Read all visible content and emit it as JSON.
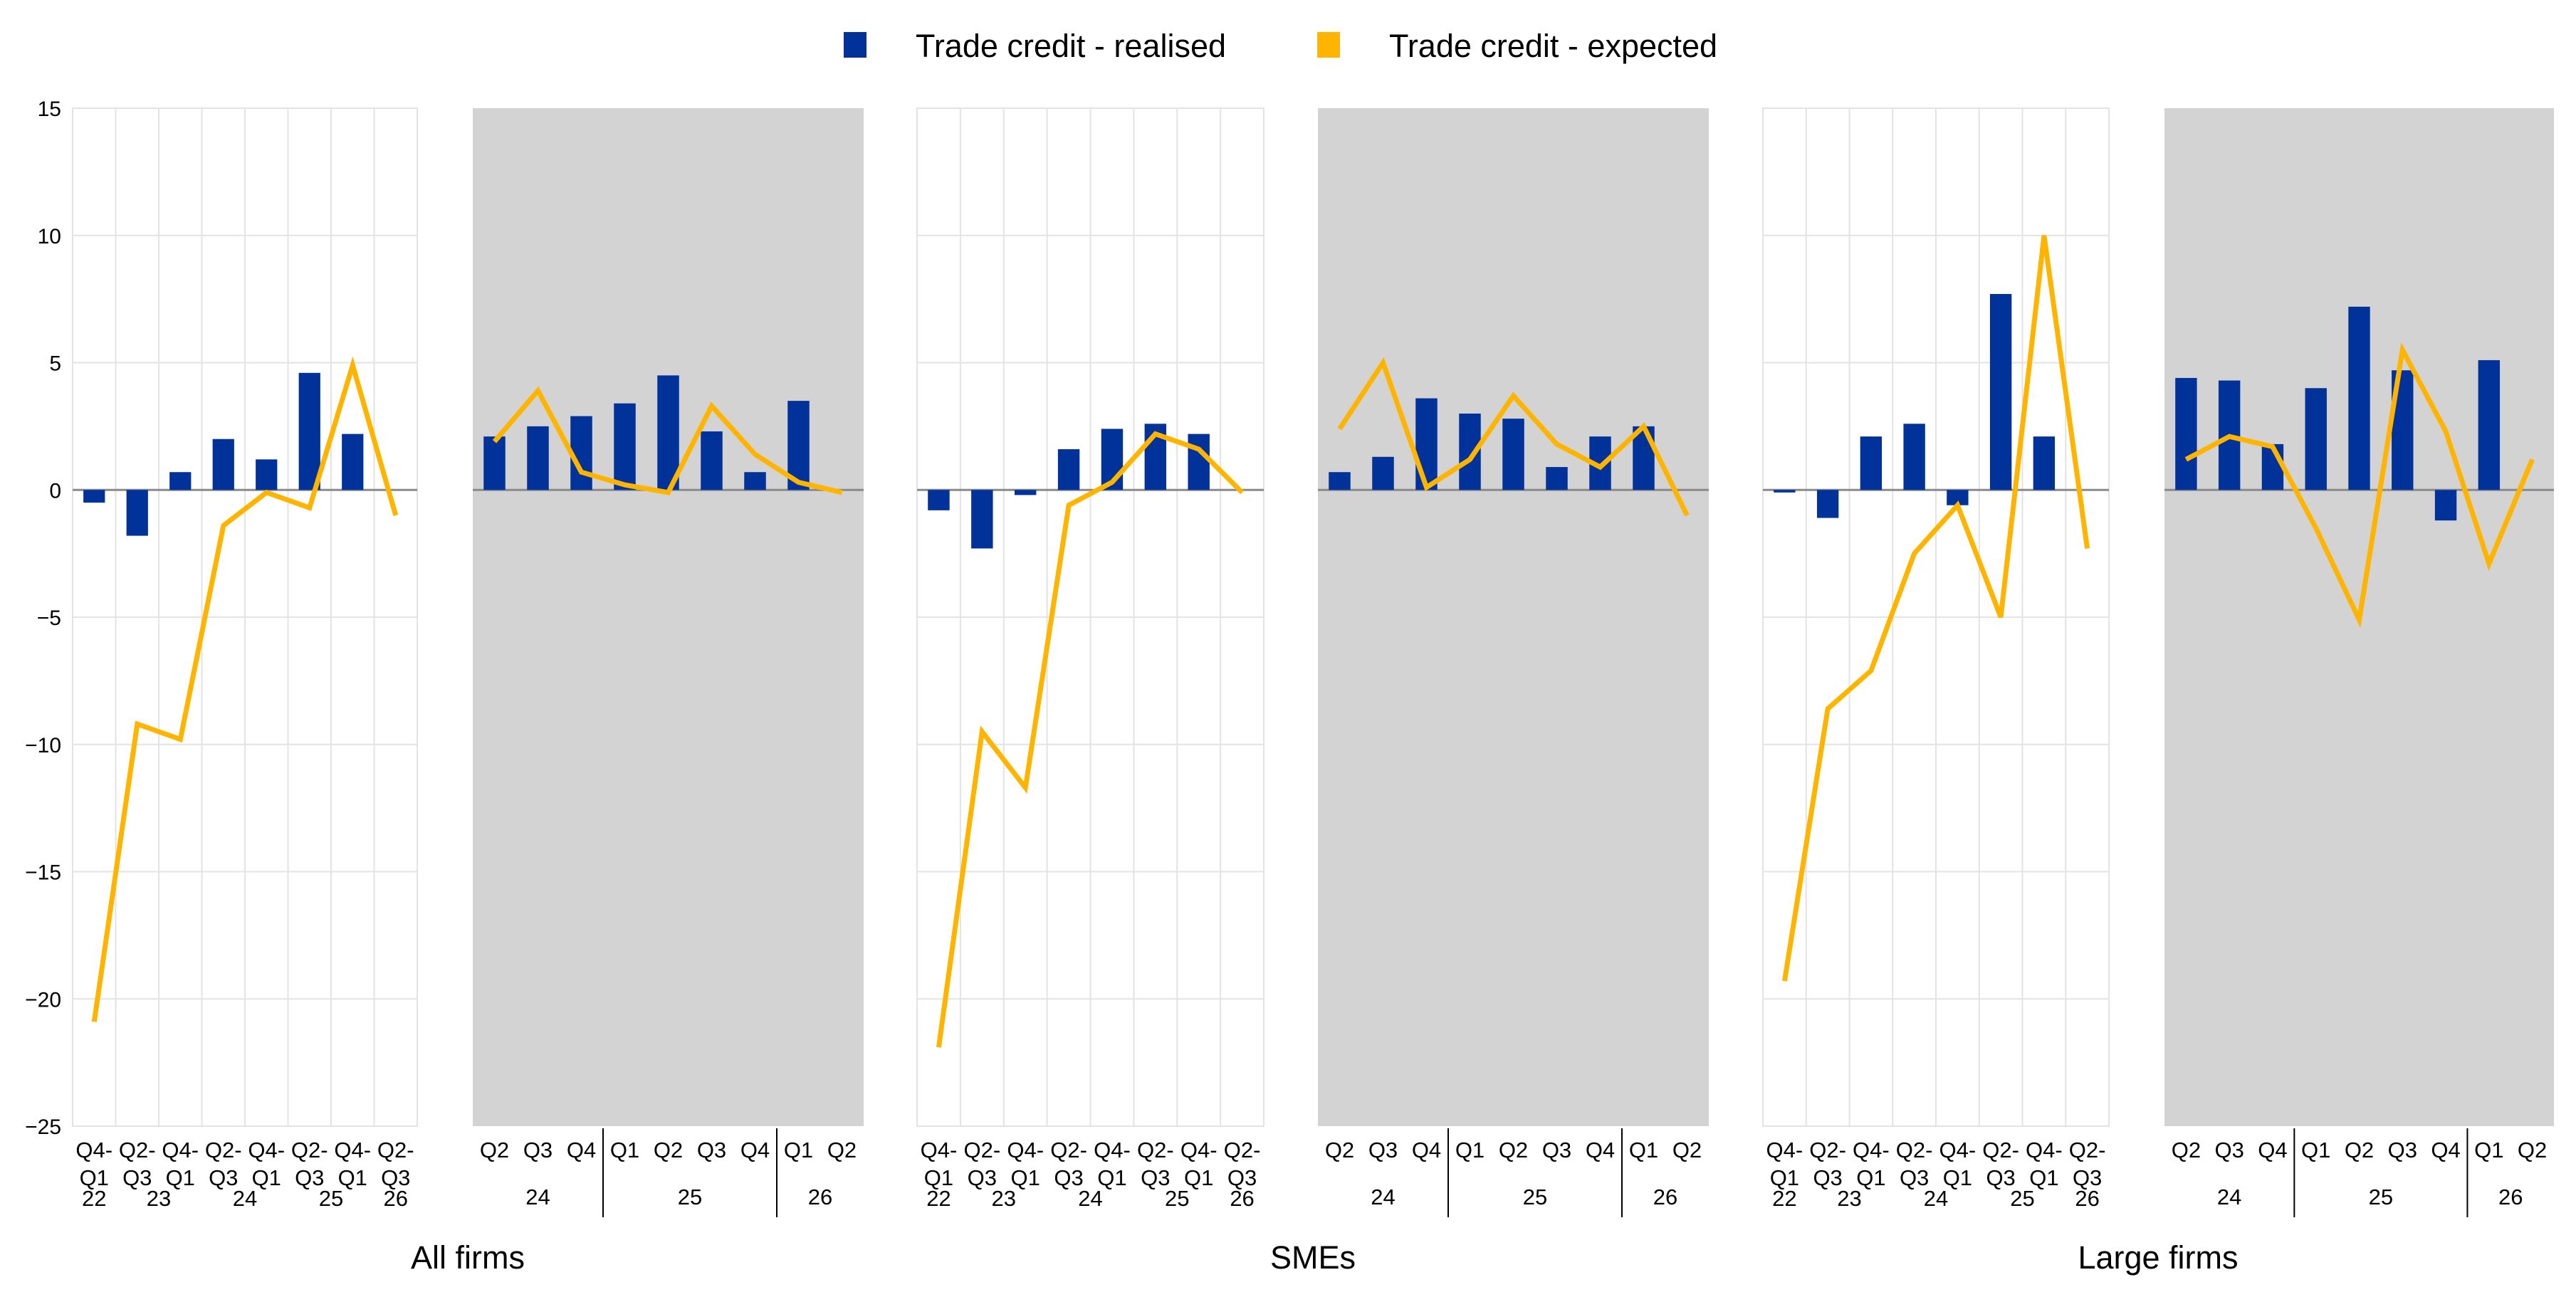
{
  "chart_data": {
    "type": "bar+line",
    "y_range": [
      -25,
      15
    ],
    "y_ticks": [
      "15",
      "10",
      "5",
      "0",
      "−5",
      "−10",
      "−15",
      "−20",
      "−25"
    ],
    "legend": [
      {
        "label": "Trade credit - realised",
        "color": "#003299"
      },
      {
        "label": "Trade credit - expected",
        "color": "#ffb400"
      }
    ],
    "colors": {
      "realised": "#003299",
      "expected": "#ffb400",
      "shade": "#d3d3d3",
      "grid": "#e3e3e3",
      "zero": "#8a8a8a"
    },
    "groups": [
      {
        "title": "All firms",
        "history": {
          "quarters": [
            "Q4-Q1",
            "Q2-Q3",
            "Q4-Q1",
            "Q2-Q3",
            "Q4-Q1",
            "Q2-Q3",
            "Q4-Q1",
            "Q2-Q3"
          ],
          "years": [
            {
              "label": "22",
              "start": 0,
              "end": 0
            },
            {
              "label": "23",
              "start": 1,
              "end": 2
            },
            {
              "label": "24",
              "start": 3,
              "end": 4
            },
            {
              "label": "25",
              "start": 5,
              "end": 6
            },
            {
              "label": "26",
              "start": 7,
              "end": 7
            }
          ],
          "realised": [
            -0.5,
            -1.8,
            0.7,
            2.0,
            1.2,
            4.6,
            2.2,
            null
          ],
          "expected": [
            -20.9,
            -9.2,
            -9.8,
            -1.4,
            -0.1,
            -0.7,
            4.9,
            -1.0
          ]
        },
        "recent": {
          "quarters": [
            "Q2",
            "Q3",
            "Q4",
            "Q1",
            "Q2",
            "Q3",
            "Q4",
            "Q1",
            "Q2"
          ],
          "years": [
            {
              "label": "24",
              "start": 0,
              "end": 2
            },
            {
              "label": "25",
              "start": 3,
              "end": 6
            },
            {
              "label": "26",
              "start": 7,
              "end": 8
            }
          ],
          "realised": [
            2.1,
            2.5,
            2.9,
            3.4,
            4.5,
            2.3,
            0.7,
            3.5,
            null
          ],
          "expected": [
            1.9,
            3.9,
            0.7,
            0.2,
            -0.1,
            3.3,
            1.4,
            0.3,
            -0.1
          ]
        }
      },
      {
        "title": "SMEs",
        "history": {
          "quarters": [
            "Q4-Q1",
            "Q2-Q3",
            "Q4-Q1",
            "Q2-Q3",
            "Q4-Q1",
            "Q2-Q3",
            "Q4-Q1",
            "Q2-Q3"
          ],
          "years": [
            {
              "label": "22",
              "start": 0,
              "end": 0
            },
            {
              "label": "23",
              "start": 1,
              "end": 2
            },
            {
              "label": "24",
              "start": 3,
              "end": 4
            },
            {
              "label": "25",
              "start": 5,
              "end": 6
            },
            {
              "label": "26",
              "start": 7,
              "end": 7
            }
          ],
          "realised": [
            -0.8,
            -2.3,
            -0.2,
            1.6,
            2.4,
            2.6,
            2.2,
            null
          ],
          "expected": [
            -21.9,
            -9.5,
            -11.7,
            -0.6,
            0.3,
            2.2,
            1.6,
            -0.1
          ]
        },
        "recent": {
          "quarters": [
            "Q2",
            "Q3",
            "Q4",
            "Q1",
            "Q2",
            "Q3",
            "Q4",
            "Q1",
            "Q2"
          ],
          "years": [
            {
              "label": "24",
              "start": 0,
              "end": 2
            },
            {
              "label": "25",
              "start": 3,
              "end": 6
            },
            {
              "label": "26",
              "start": 7,
              "end": 8
            }
          ],
          "realised": [
            0.7,
            1.3,
            3.6,
            3.0,
            2.8,
            0.9,
            2.1,
            2.5,
            null
          ],
          "expected": [
            2.4,
            5.0,
            0.1,
            1.2,
            3.7,
            1.8,
            0.9,
            2.5,
            -1.0
          ]
        }
      },
      {
        "title": "Large firms",
        "history": {
          "quarters": [
            "Q4-Q1",
            "Q2-Q3",
            "Q4-Q1",
            "Q2-Q3",
            "Q4-Q1",
            "Q2-Q3",
            "Q4-Q1",
            "Q2-Q3"
          ],
          "years": [
            {
              "label": "22",
              "start": 0,
              "end": 0
            },
            {
              "label": "23",
              "start": 1,
              "end": 2
            },
            {
              "label": "24",
              "start": 3,
              "end": 4
            },
            {
              "label": "25",
              "start": 5,
              "end": 6
            },
            {
              "label": "26",
              "start": 7,
              "end": 7
            }
          ],
          "realised": [
            -0.1,
            -1.1,
            2.1,
            2.6,
            -0.6,
            7.7,
            2.1,
            null
          ],
          "expected": [
            -19.3,
            -8.6,
            -7.1,
            -2.5,
            -0.6,
            -5.0,
            10.0,
            -2.3
          ]
        },
        "recent": {
          "quarters": [
            "Q2",
            "Q3",
            "Q4",
            "Q1",
            "Q2",
            "Q3",
            "Q4",
            "Q1",
            "Q2"
          ],
          "years": [
            {
              "label": "24",
              "start": 0,
              "end": 2
            },
            {
              "label": "25",
              "start": 3,
              "end": 6
            },
            {
              "label": "26",
              "start": 7,
              "end": 8
            }
          ],
          "realised": [
            4.4,
            4.3,
            1.8,
            4.0,
            7.2,
            4.7,
            -1.2,
            5.1,
            null
          ],
          "expected": [
            1.2,
            2.1,
            1.7,
            -1.5,
            -5.1,
            5.5,
            2.3,
            -2.9,
            1.2
          ]
        }
      }
    ]
  }
}
